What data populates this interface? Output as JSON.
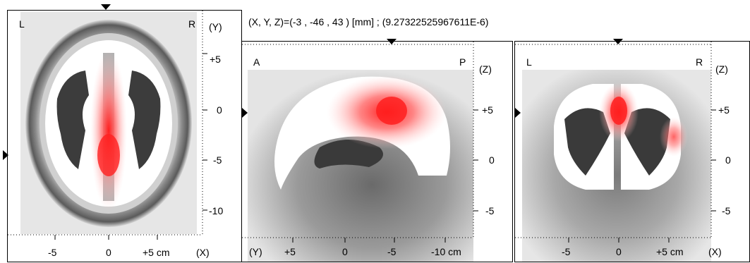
{
  "header": {
    "coords": "(X, Y, Z)=(-3 , -46 , 43 ) [mm] ;  (9.27322525967611E-6)"
  },
  "axial": {
    "corner_left": "L",
    "corner_right": "R",
    "axis_vertical": "(Y)",
    "axis_horizontal": "(X)",
    "y_ticks": [
      "+5",
      "0",
      "-5",
      "-10"
    ],
    "x_ticks": [
      "-5",
      "0",
      "+5 cm"
    ]
  },
  "sagittal": {
    "corner_left": "A",
    "corner_right": "P",
    "axis_vertical": "(Z)",
    "axis_horizontal": "(Y)",
    "z_ticks": [
      "+5",
      "0",
      "-5"
    ],
    "y_ticks": [
      "+5",
      "0",
      "-5",
      "-10 cm"
    ]
  },
  "coronal": {
    "corner_left": "L",
    "corner_right": "R",
    "axis_vertical": "(Z)",
    "axis_horizontal": "(X)",
    "z_ticks": [
      "+5",
      "0",
      "-5"
    ],
    "x_ticks": [
      "-5",
      "0",
      "+5 cm"
    ]
  },
  "colors": {
    "activation": "#ff2a2a",
    "white_matter": "#3c3c3c",
    "background": "#e6e6e6"
  }
}
